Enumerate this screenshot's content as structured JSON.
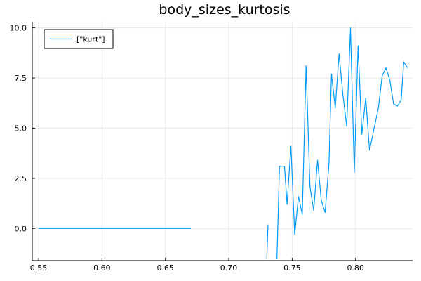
{
  "chart_data": {
    "type": "line",
    "title": "body_sizes_kurtosis",
    "xlabel": "",
    "ylabel": "",
    "xlim": [
      0.545,
      0.845
    ],
    "ylim": [
      -1.6,
      10.3
    ],
    "xticks": [
      0.55,
      0.6,
      0.65,
      0.7,
      0.75,
      0.8
    ],
    "xtick_labels": [
      "0.55",
      "0.60",
      "0.65",
      "0.70",
      "0.75",
      "0.80"
    ],
    "yticks": [
      0.0,
      2.5,
      5.0,
      7.5,
      10.0
    ],
    "ytick_labels": [
      "0.0",
      "2.5",
      "5.0",
      "7.5",
      "10.0"
    ],
    "grid": true,
    "legend_position": "top-left",
    "color": "#009af9",
    "series": [
      {
        "name": "[\"kurt\"]",
        "segments": [
          [
            [
              0.55,
              0.0
            ],
            [
              0.67,
              0.0
            ]
          ],
          [
            [
              0.73,
              -1.5
            ],
            [
              0.731,
              0.2
            ]
          ],
          [
            [
              0.738,
              -1.5
            ],
            [
              0.74,
              3.1
            ],
            [
              0.744,
              3.1
            ],
            [
              0.746,
              1.2
            ],
            [
              0.749,
              4.1
            ],
            [
              0.752,
              -0.3
            ],
            [
              0.755,
              1.6
            ],
            [
              0.758,
              0.7
            ],
            [
              0.761,
              8.1
            ],
            [
              0.764,
              2.1
            ],
            [
              0.767,
              0.9
            ],
            [
              0.77,
              3.4
            ],
            [
              0.773,
              1.4
            ],
            [
              0.776,
              0.8
            ],
            [
              0.779,
              3.2
            ],
            [
              0.781,
              7.7
            ],
            [
              0.784,
              6.0
            ],
            [
              0.787,
              8.7
            ],
            [
              0.79,
              6.7
            ],
            [
              0.793,
              5.1
            ],
            [
              0.796,
              10.0
            ],
            [
              0.799,
              2.8
            ],
            [
              0.802,
              9.1
            ],
            [
              0.805,
              4.7
            ],
            [
              0.808,
              6.5
            ],
            [
              0.811,
              3.9
            ],
            [
              0.818,
              6.0
            ],
            [
              0.821,
              7.6
            ],
            [
              0.824,
              8.0
            ],
            [
              0.827,
              7.4
            ],
            [
              0.83,
              6.2
            ],
            [
              0.833,
              6.1
            ],
            [
              0.836,
              6.4
            ],
            [
              0.838,
              8.3
            ],
            [
              0.841,
              8.0
            ]
          ]
        ]
      }
    ]
  }
}
